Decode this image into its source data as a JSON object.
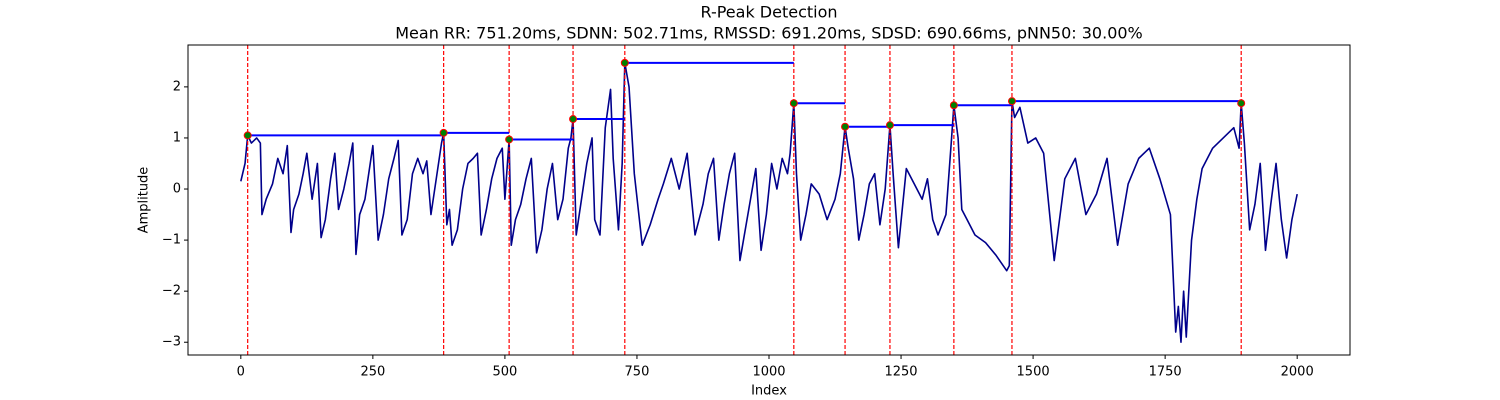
{
  "chart_data": {
    "type": "line",
    "title": "R-Peak Detection",
    "subtitle": "Mean RR: 751.20ms, SDNN: 502.71ms, RMSSD: 691.20ms, SDSD: 690.66ms, pNN50: 30.00%",
    "xlabel": "Index",
    "ylabel": "Amplitude",
    "xlim": [
      -100,
      2100
    ],
    "ylim": [
      -3.25,
      2.82
    ],
    "xticks": [
      0,
      250,
      500,
      750,
      1000,
      1250,
      1500,
      1750,
      2000
    ],
    "yticks": [
      {
        "value": -3,
        "label": "−3"
      },
      {
        "value": -2,
        "label": "−2"
      },
      {
        "value": -1,
        "label": "−1"
      },
      0,
      1,
      2
    ],
    "color": "#00008b",
    "x": [
      0,
      8,
      13,
      20,
      30,
      37,
      40,
      48,
      60,
      70,
      80,
      88,
      95,
      100,
      110,
      118,
      125,
      135,
      145,
      152,
      160,
      170,
      178,
      185,
      195,
      205,
      212,
      218,
      225,
      235,
      245,
      250,
      260,
      270,
      280,
      290,
      298,
      305,
      315,
      325,
      335,
      345,
      352,
      360,
      370,
      380,
      384,
      390,
      395,
      400,
      410,
      420,
      430,
      440,
      448,
      455,
      465,
      475,
      485,
      495,
      500,
      508,
      512,
      520,
      530,
      540,
      550,
      560,
      570,
      580,
      590,
      600,
      610,
      620,
      625,
      629,
      635,
      645,
      655,
      665,
      670,
      680,
      690,
      700,
      705,
      715,
      722,
      727,
      735,
      745,
      760,
      775,
      790,
      800,
      815,
      830,
      845,
      860,
      875,
      885,
      895,
      905,
      915,
      925,
      935,
      945,
      955,
      965,
      975,
      985,
      995,
      1005,
      1015,
      1025,
      1035,
      1040,
      1047,
      1052,
      1060,
      1070,
      1080,
      1095,
      1110,
      1125,
      1135,
      1144,
      1150,
      1160,
      1170,
      1180,
      1190,
      1200,
      1210,
      1220,
      1229,
      1235,
      1245,
      1260,
      1275,
      1290,
      1300,
      1310,
      1320,
      1335,
      1345,
      1350,
      1358,
      1365,
      1375,
      1390,
      1410,
      1430,
      1450,
      1455,
      1460,
      1465,
      1475,
      1490,
      1505,
      1520,
      1540,
      1560,
      1580,
      1600,
      1620,
      1640,
      1660,
      1680,
      1700,
      1720,
      1740,
      1760,
      1770,
      1775,
      1780,
      1785,
      1790,
      1800,
      1810,
      1820,
      1840,
      1860,
      1880,
      1890,
      1894,
      1900,
      1910,
      1920,
      1930,
      1940,
      1950,
      1960,
      1970,
      1980,
      1990,
      2000
    ],
    "values": [
      0.15,
      0.5,
      1.05,
      0.9,
      1.0,
      0.9,
      -0.5,
      -0.2,
      0.1,
      0.6,
      0.3,
      0.85,
      -0.85,
      -0.4,
      -0.1,
      0.3,
      0.7,
      -0.2,
      0.5,
      -0.95,
      -0.6,
      0.2,
      0.7,
      -0.4,
      0.0,
      0.5,
      0.9,
      -1.28,
      -0.5,
      -0.2,
      0.5,
      0.85,
      -1.0,
      -0.5,
      0.2,
      0.6,
      0.95,
      -0.9,
      -0.6,
      0.3,
      0.6,
      0.3,
      0.55,
      -0.5,
      0.2,
      0.9,
      1.1,
      -0.7,
      -0.4,
      -1.1,
      -0.8,
      0.0,
      0.5,
      0.6,
      0.7,
      -0.9,
      -0.4,
      0.2,
      0.6,
      0.8,
      -0.2,
      0.97,
      -1.1,
      -0.6,
      -0.3,
      0.2,
      0.6,
      -1.25,
      -0.8,
      0.0,
      0.5,
      -0.6,
      -0.2,
      0.8,
      1.0,
      1.37,
      -0.9,
      -0.2,
      0.5,
      1.0,
      -0.6,
      -0.9,
      1.2,
      1.95,
      0.6,
      -0.8,
      0.5,
      2.47,
      2.0,
      0.3,
      -1.1,
      -0.7,
      -0.2,
      0.1,
      0.6,
      0.0,
      0.7,
      -0.9,
      -0.3,
      0.3,
      0.6,
      -1.0,
      -0.3,
      0.3,
      0.7,
      -1.4,
      -0.8,
      -0.2,
      0.4,
      -1.2,
      -0.5,
      0.5,
      0.0,
      0.6,
      0.3,
      0.7,
      1.68,
      0.3,
      -1.0,
      -0.5,
      0.1,
      -0.1,
      -0.6,
      -0.2,
      0.3,
      1.22,
      0.8,
      0.2,
      -1.0,
      -0.5,
      0.1,
      0.3,
      -0.7,
      0.0,
      1.25,
      0.3,
      -1.15,
      0.4,
      0.1,
      -0.2,
      0.2,
      -0.6,
      -0.9,
      -0.5,
      0.9,
      1.64,
      1.0,
      -0.4,
      -0.6,
      -0.9,
      -1.05,
      -1.3,
      -1.6,
      -1.5,
      1.72,
      1.4,
      1.6,
      0.9,
      1.0,
      0.7,
      -1.4,
      0.2,
      0.6,
      -0.5,
      -0.1,
      0.6,
      -1.1,
      0.1,
      0.6,
      0.8,
      0.2,
      -0.5,
      -2.8,
      -2.3,
      -3.0,
      -2.0,
      -2.9,
      -1.0,
      -0.2,
      0.4,
      0.8,
      1.0,
      1.2,
      0.8,
      1.68,
      0.9,
      -0.8,
      -0.3,
      0.5,
      -1.2,
      -0.3,
      0.5,
      -0.6,
      -1.35,
      -0.6,
      -0.1
    ],
    "peaks": {
      "x": [
        13,
        384,
        508,
        629,
        727,
        1047,
        1144,
        1229,
        1350,
        1460,
        1894
      ],
      "values": [
        1.05,
        1.1,
        0.97,
        1.37,
        2.47,
        1.68,
        1.22,
        1.25,
        1.64,
        1.72,
        1.68
      ],
      "color": "#008000",
      "edge_color": "#ff0000",
      "line_color": "#ff0000",
      "rr_color": "#0000ff"
    }
  }
}
